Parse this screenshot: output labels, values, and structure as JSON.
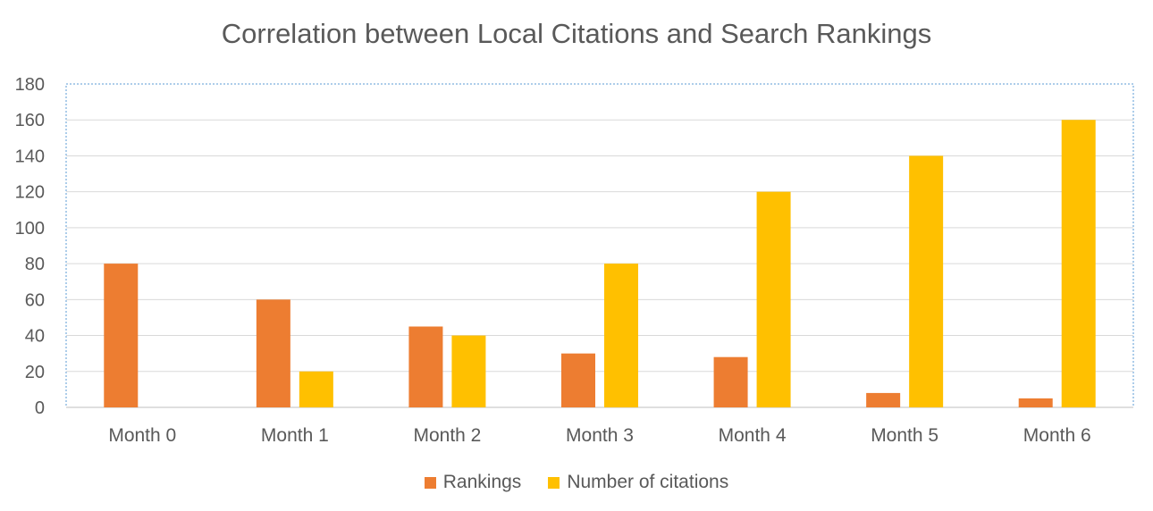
{
  "chart_data": {
    "type": "bar",
    "title": "Correlation between Local Citations and Search Rankings",
    "categories": [
      "Month 0",
      "Month 1",
      "Month 2",
      "Month 3",
      "Month 4",
      "Month 5",
      "Month 6"
    ],
    "series": [
      {
        "name": "Rankings",
        "color": "#ED7D31",
        "values": [
          80,
          60,
          45,
          30,
          28,
          8,
          5
        ]
      },
      {
        "name": "Number of citations",
        "color": "#FFC000",
        "values": [
          0,
          20,
          40,
          80,
          120,
          140,
          160
        ]
      }
    ],
    "ylim": [
      0,
      180
    ],
    "yticks": [
      "0",
      "20",
      "40",
      "60",
      "80",
      "100",
      "120",
      "140",
      "160",
      "180"
    ],
    "grid": true,
    "legend_position": "bottom"
  }
}
